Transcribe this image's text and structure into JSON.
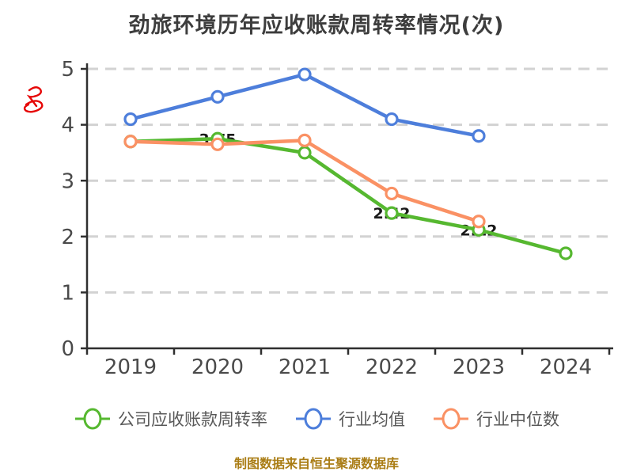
{
  "title": "劲旅环境历年应收账款周转率情况(次)",
  "footer_note": "制图数据来自恒生聚源数据库",
  "y_axis_red_mark": "次",
  "colors": {
    "title_text": "#3d3d3d",
    "axis": "#2f2f2f",
    "tick_label": "#4a4a4a",
    "gridline": "#d2d2d2",
    "legend_text": "#595959",
    "footer_text": "#aa7d15",
    "red_mark": "#e60606",
    "company_series": "#56b830",
    "industry_mean_series": "#4d7edb",
    "industry_median_series": "#fa9164"
  },
  "chart_data": {
    "type": "line",
    "title": "劲旅环境历年应收账款周转率情况(次)",
    "categories": [
      "2019",
      "2020",
      "2021",
      "2022",
      "2023",
      "2024"
    ],
    "series": [
      {
        "name": "公司应收账款周转率",
        "color": "#56b830",
        "values": [
          3.7,
          3.75,
          3.5,
          2.42,
          2.12,
          1.7
        ],
        "point_labels": [
          null,
          "3.75",
          null,
          "2.42",
          "2.12",
          null
        ]
      },
      {
        "name": "行业均值",
        "color": "#4d7edb",
        "values": [
          4.1,
          4.5,
          4.9,
          4.1,
          3.8,
          null
        ],
        "point_labels": [
          null,
          null,
          null,
          null,
          null,
          null
        ]
      },
      {
        "name": "行业中位数",
        "color": "#fa9164",
        "values": [
          3.7,
          3.65,
          3.72,
          2.77,
          2.27,
          null
        ],
        "point_labels": [
          null,
          null,
          null,
          null,
          null,
          null
        ]
      }
    ],
    "ylim": [
      0,
      5
    ],
    "yticks": [
      0,
      1,
      2,
      3,
      4,
      5
    ],
    "xlabel": "",
    "ylabel": "",
    "grid": "horizontal-dashed",
    "legend_position": "bottom",
    "marker": "white-filled-circle"
  }
}
